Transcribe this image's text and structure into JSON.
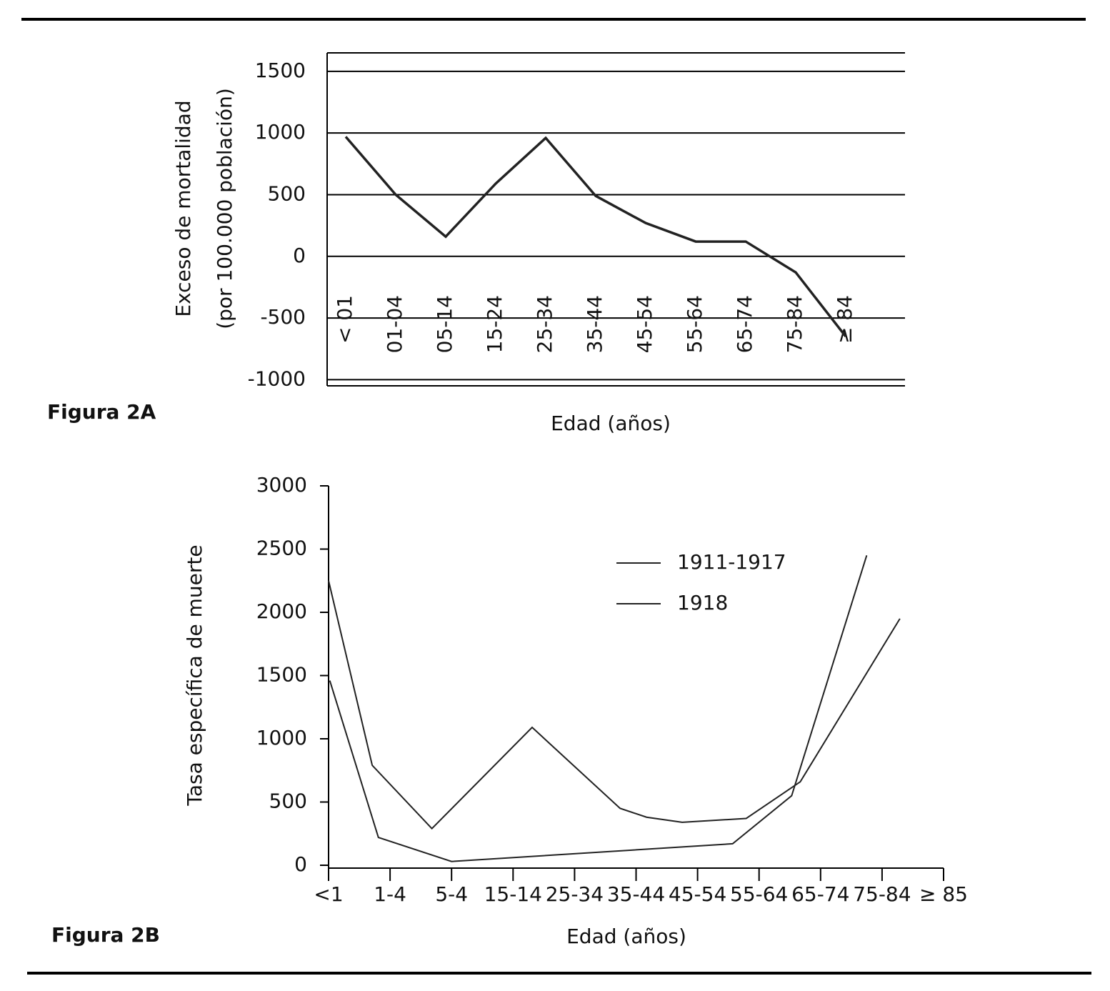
{
  "chart_data": [
    {
      "type": "line",
      "label": "Figura 2A",
      "y_label": [
        "Exceso de mortalidad",
        "(por 100.000 población)"
      ],
      "x_label": "Edad (años)",
      "categories": [
        "< 01",
        "01-04",
        "05-14",
        "15-24",
        "25-34",
        "35-44",
        "45-54",
        "55-64",
        "65-74",
        "75-84",
        "≥ 84"
      ],
      "values": [
        970,
        500,
        160,
        590,
        960,
        490,
        270,
        120,
        120,
        -130,
        -650
      ],
      "color": "#222222",
      "ylim": [
        -1050,
        1650
      ],
      "yticks": [
        1500,
        1000,
        500,
        0,
        -500,
        -1000
      ],
      "grid": true
    },
    {
      "type": "xyline",
      "label": "Figura 2B",
      "y_label": "Tasa específica de muerte",
      "x_label": "Edad (años)",
      "xlim": [
        0,
        10
      ],
      "xticks": [
        {
          "value": 0,
          "label": "<1"
        },
        {
          "value": 1,
          "label": "1-4"
        },
        {
          "value": 2,
          "label": "5-4"
        },
        {
          "value": 3,
          "label": "15-14"
        },
        {
          "value": 4,
          "label": "25-34"
        },
        {
          "value": 5,
          "label": "35-44"
        },
        {
          "value": 6,
          "label": "45-54"
        },
        {
          "value": 7,
          "label": "55-64"
        },
        {
          "value": 8,
          "label": "65-74"
        },
        {
          "value": 9,
          "label": "75-84"
        },
        {
          "value": 10,
          "label": "≥ 85"
        }
      ],
      "ylim": [
        0,
        3000
      ],
      "yticks": [
        0,
        500,
        1000,
        1500,
        2000,
        2500,
        3000
      ],
      "series": [
        {
          "name": "1911-1917",
          "color": "#222222",
          "x": [
            0.02,
            0.81,
            2.0,
            6.57,
            7.53,
            8.75
          ],
          "values": [
            1460,
            220,
            30,
            170,
            550,
            2450
          ]
        },
        {
          "name": "1918",
          "color": "#222222",
          "x": [
            0,
            0.71,
            1.68,
            3.31,
            4.74,
            5.17,
            5.75,
            6.79,
            7.67,
            9.29
          ],
          "values": [
            2250,
            790,
            290,
            1090,
            450,
            380,
            340,
            370,
            660,
            1950
          ]
        }
      ]
    }
  ]
}
